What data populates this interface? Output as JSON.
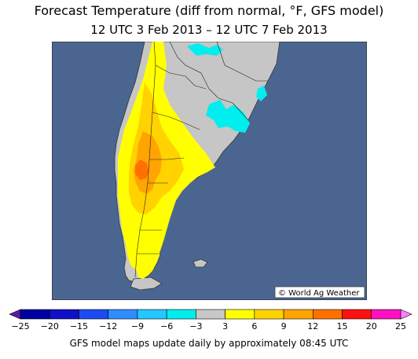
{
  "header": {
    "title": "Forecast Temperature (diff from normal, °F, GFS model)",
    "subtitle": "12 UTC 3 Feb 2013 – 12 UTC 7 Feb 2013"
  },
  "map": {
    "copyright": "© World Ag Weather",
    "ocean_color": "#4a6690",
    "land_color": "#c6c6c6"
  },
  "legend": {
    "ticks": [
      "−25",
      "−20",
      "−15",
      "−12",
      "−9",
      "−6",
      "−3",
      "3",
      "6",
      "9",
      "12",
      "15",
      "20",
      "25"
    ],
    "colors": [
      "#5a1aa8",
      "#0000a0",
      "#1010c8",
      "#1c4cf0",
      "#2f8cff",
      "#22c8ff",
      "#00eeee",
      "#c8c8c8",
      "#ffff00",
      "#ffd200",
      "#ffa400",
      "#ff7000",
      "#ff1010",
      "#ff10c0",
      "#ff80ff"
    ]
  },
  "footer": {
    "text": "GFS model maps update daily by approximately 08:45 UTC"
  }
}
